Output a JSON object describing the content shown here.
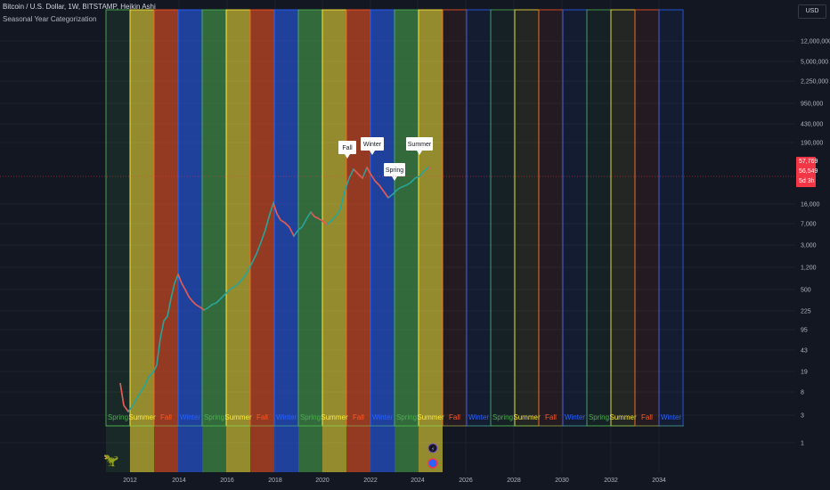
{
  "header": {
    "symbol_line": "Bitcoin / U.S. Dollar, 1W, BITSTAMP, Heikin Ashi",
    "indicator_line": "Seasonal Year Categorization"
  },
  "currency_button": "USD",
  "y_axis_labels": [
    "12,000,000",
    "5,000,000",
    "2,250,000",
    "950,000",
    "430,000",
    "190,000",
    "16,000",
    "7,000",
    "3,000",
    "1,200",
    "500",
    "225",
    "95",
    "43",
    "19",
    "8",
    "3",
    "1"
  ],
  "x_axis_labels": [
    "2012",
    "2014",
    "2016",
    "2018",
    "2020",
    "2022",
    "2024",
    "2026",
    "2028",
    "2030",
    "2032",
    "2034"
  ],
  "price_tags": {
    "high": "57,769",
    "last": "56,549",
    "countdown": "5d 3h"
  },
  "colors": {
    "spring": "#4caf50",
    "summer": "#ffeb3b",
    "fall": "#ff5722",
    "winter": "#2962ff",
    "background": "#131722",
    "price_tag": "#f23645"
  },
  "season_bottom_labels": [
    "Spring",
    "Summer",
    "Fall",
    "Winter",
    "Spring",
    "Summer",
    "Fall",
    "Winter",
    "Spring",
    "Summer",
    "Fall",
    "Winter",
    "Spring",
    "Summer",
    "Fall",
    "Winter",
    "Spring",
    "Summer",
    "Fall",
    "Winter",
    "Spring",
    "Summer",
    "Fall",
    "Winter"
  ],
  "callouts": [
    "Fall",
    "Winter",
    "Spring",
    "Summer"
  ]
}
